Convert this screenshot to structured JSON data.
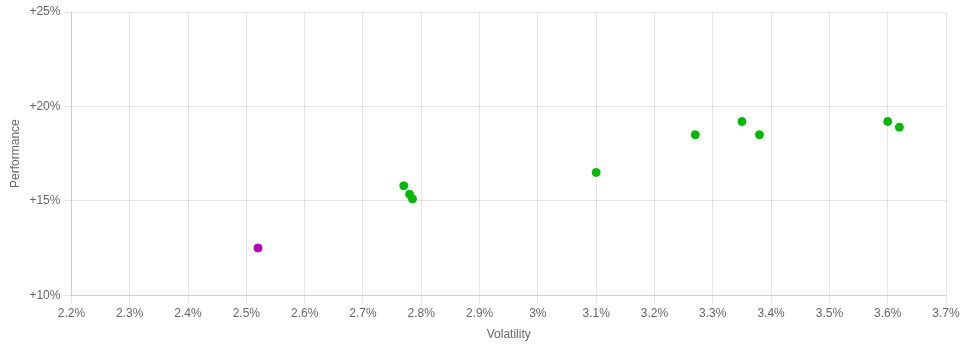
{
  "chart_data": {
    "type": "scatter",
    "xlabel": "Volatility",
    "ylabel": "Performance",
    "xlim": [
      0.022,
      0.037
    ],
    "ylim": [
      0.1,
      0.25
    ],
    "xticks": [
      {
        "value": 0.022,
        "label": "2.2%"
      },
      {
        "value": 0.023,
        "label": "2.3%"
      },
      {
        "value": 0.024,
        "label": "2.4%"
      },
      {
        "value": 0.025,
        "label": "2.5%"
      },
      {
        "value": 0.026,
        "label": "2.6%"
      },
      {
        "value": 0.027,
        "label": "2.7%"
      },
      {
        "value": 0.028,
        "label": "2.8%"
      },
      {
        "value": 0.029,
        "label": "2.9%"
      },
      {
        "value": 0.03,
        "label": "3%"
      },
      {
        "value": 0.031,
        "label": "3.1%"
      },
      {
        "value": 0.032,
        "label": "3.2%"
      },
      {
        "value": 0.033,
        "label": "3.3%"
      },
      {
        "value": 0.034,
        "label": "3.4%"
      },
      {
        "value": 0.035,
        "label": "3.5%"
      },
      {
        "value": 0.036,
        "label": "3.6%"
      },
      {
        "value": 0.037,
        "label": "3.7%"
      }
    ],
    "yticks": [
      {
        "value": 0.1,
        "label": "+10%"
      },
      {
        "value": 0.15,
        "label": "+15%"
      },
      {
        "value": 0.2,
        "label": "+20%"
      },
      {
        "value": 0.25,
        "label": "+25%"
      }
    ],
    "grid": true,
    "series": [
      {
        "color": "#00bb00",
        "x": [
          0.0277,
          0.0278,
          0.02785,
          0.031,
          0.0327,
          0.0335,
          0.0338,
          0.036,
          0.0362
        ],
        "values": [
          0.158,
          0.1535,
          0.151,
          0.165,
          0.185,
          0.192,
          0.185,
          0.192,
          0.189
        ]
      },
      {
        "color": "#bb00bb",
        "x": [
          0.0252
        ],
        "values": [
          0.125
        ]
      }
    ]
  }
}
